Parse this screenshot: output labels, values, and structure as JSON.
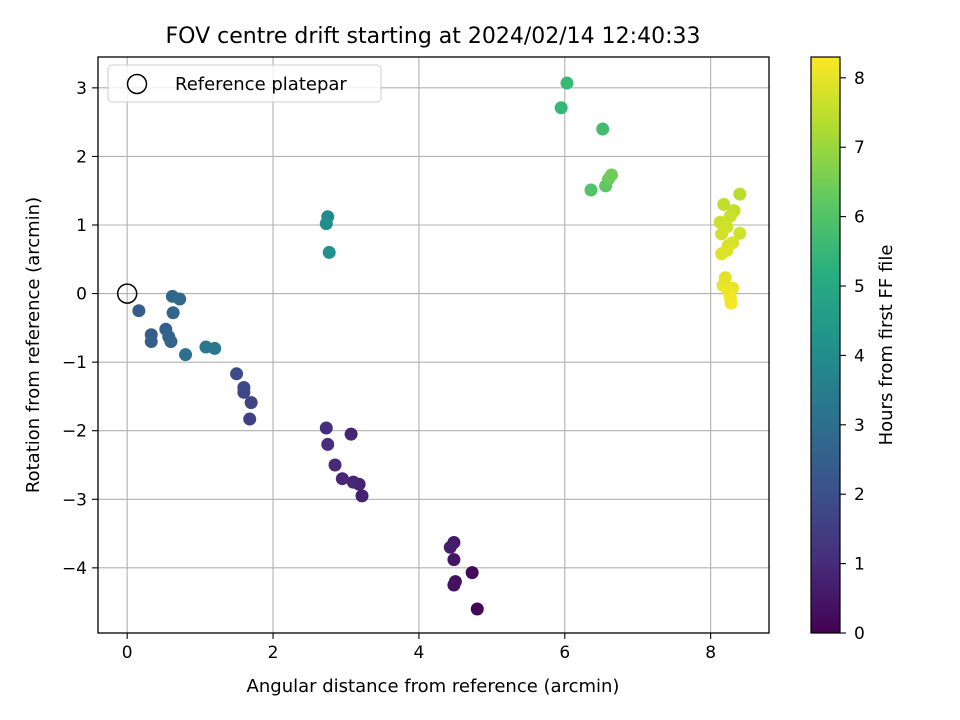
{
  "chart_data": {
    "type": "scatter",
    "title": "FOV centre drift starting at 2024/02/14 12:40:33",
    "xlabel": "Angular distance from reference (arcmin)",
    "ylabel": "Rotation from reference (arcmin)",
    "xlim": [
      -0.4,
      8.8
    ],
    "ylim": [
      -4.95,
      3.45
    ],
    "xticks": [
      0,
      2,
      4,
      6,
      8
    ],
    "yticks": [
      -4,
      -3,
      -2,
      -1,
      0,
      1,
      2,
      3
    ],
    "xtick_labels": [
      "0",
      "2",
      "4",
      "6",
      "8"
    ],
    "ytick_labels": [
      "−4",
      "−3",
      "−2",
      "−1",
      "0",
      "1",
      "2",
      "3"
    ],
    "grid": true,
    "legend": {
      "placement": "top-left",
      "entries": [
        "Reference platepar"
      ]
    },
    "reference_point": {
      "x": 0,
      "y": 0
    },
    "colorbar": {
      "label": "Hours from first FF file",
      "colormap": "viridis",
      "range": [
        0,
        8.3
      ],
      "ticks": [
        0,
        1,
        2,
        3,
        4,
        5,
        6,
        7,
        8
      ],
      "tick_labels": [
        "0",
        "1",
        "2",
        "3",
        "4",
        "5",
        "6",
        "7",
        "8"
      ]
    },
    "points": [
      {
        "x": 4.8,
        "y": -4.6,
        "hours": 0.1
      },
      {
        "x": 4.73,
        "y": -4.07,
        "hours": 0.2
      },
      {
        "x": 4.5,
        "y": -4.2,
        "hours": 0.35
      },
      {
        "x": 4.48,
        "y": -4.25,
        "hours": 0.4
      },
      {
        "x": 4.48,
        "y": -3.88,
        "hours": 0.5
      },
      {
        "x": 4.48,
        "y": -3.63,
        "hours": 0.6
      },
      {
        "x": 4.43,
        "y": -3.7,
        "hours": 0.65
      },
      {
        "x": 3.22,
        "y": -2.95,
        "hours": 0.75
      },
      {
        "x": 3.18,
        "y": -2.78,
        "hours": 0.8
      },
      {
        "x": 3.1,
        "y": -2.75,
        "hours": 0.85
      },
      {
        "x": 2.95,
        "y": -2.7,
        "hours": 0.9
      },
      {
        "x": 3.07,
        "y": -2.05,
        "hours": 0.85
      },
      {
        "x": 2.85,
        "y": -2.5,
        "hours": 1.0
      },
      {
        "x": 2.75,
        "y": -2.2,
        "hours": 1.05
      },
      {
        "x": 2.73,
        "y": -1.96,
        "hours": 1.1
      },
      {
        "x": 1.68,
        "y": -1.83,
        "hours": 1.6
      },
      {
        "x": 1.7,
        "y": -1.59,
        "hours": 1.65
      },
      {
        "x": 1.6,
        "y": -1.44,
        "hours": 1.75
      },
      {
        "x": 1.6,
        "y": -1.37,
        "hours": 1.8
      },
      {
        "x": 1.5,
        "y": -1.17,
        "hours": 1.9
      },
      {
        "x": 0.16,
        "y": -0.25,
        "hours": 2.4
      },
      {
        "x": 0.33,
        "y": -0.6,
        "hours": 2.45
      },
      {
        "x": 0.33,
        "y": -0.7,
        "hours": 2.5
      },
      {
        "x": 0.53,
        "y": -0.52,
        "hours": 2.55
      },
      {
        "x": 0.57,
        "y": -0.63,
        "hours": 2.6
      },
      {
        "x": 0.6,
        "y": -0.7,
        "hours": 2.65
      },
      {
        "x": 0.63,
        "y": -0.28,
        "hours": 2.7
      },
      {
        "x": 0.62,
        "y": -0.04,
        "hours": 2.75
      },
      {
        "x": 0.72,
        "y": -0.08,
        "hours": 2.85
      },
      {
        "x": 0.8,
        "y": -0.89,
        "hours": 3.05
      },
      {
        "x": 1.08,
        "y": -0.78,
        "hours": 3.3
      },
      {
        "x": 1.2,
        "y": -0.8,
        "hours": 3.35
      },
      {
        "x": 2.75,
        "y": 1.12,
        "hours": 3.95
      },
      {
        "x": 2.73,
        "y": 1.02,
        "hours": 4.0
      },
      {
        "x": 2.77,
        "y": 0.6,
        "hours": 4.1
      },
      {
        "x": 5.95,
        "y": 2.71,
        "hours": 5.5
      },
      {
        "x": 6.03,
        "y": 3.07,
        "hours": 5.55
      },
      {
        "x": 6.52,
        "y": 2.4,
        "hours": 5.7
      },
      {
        "x": 6.36,
        "y": 1.51,
        "hours": 6.0
      },
      {
        "x": 6.56,
        "y": 1.57,
        "hours": 6.2
      },
      {
        "x": 6.6,
        "y": 1.67,
        "hours": 6.35
      },
      {
        "x": 6.64,
        "y": 1.73,
        "hours": 6.45
      },
      {
        "x": 8.4,
        "y": 1.45,
        "hours": 7.4
      },
      {
        "x": 8.18,
        "y": 1.3,
        "hours": 7.5
      },
      {
        "x": 8.32,
        "y": 1.21,
        "hours": 7.55
      },
      {
        "x": 8.27,
        "y": 1.13,
        "hours": 7.6
      },
      {
        "x": 8.13,
        "y": 1.04,
        "hours": 7.65
      },
      {
        "x": 8.22,
        "y": 0.97,
        "hours": 7.7
      },
      {
        "x": 8.4,
        "y": 0.88,
        "hours": 7.72
      },
      {
        "x": 8.15,
        "y": 0.87,
        "hours": 7.75
      },
      {
        "x": 8.3,
        "y": 0.74,
        "hours": 7.8
      },
      {
        "x": 8.24,
        "y": 0.7,
        "hours": 7.82
      },
      {
        "x": 8.22,
        "y": 0.63,
        "hours": 7.85
      },
      {
        "x": 8.15,
        "y": 0.58,
        "hours": 7.88
      },
      {
        "x": 8.2,
        "y": 0.23,
        "hours": 7.95
      },
      {
        "x": 8.17,
        "y": 0.12,
        "hours": 8.0
      },
      {
        "x": 8.3,
        "y": 0.08,
        "hours": 8.05
      },
      {
        "x": 8.24,
        "y": 0.04,
        "hours": 8.1
      },
      {
        "x": 8.27,
        "y": -0.06,
        "hours": 8.15
      },
      {
        "x": 8.28,
        "y": -0.14,
        "hours": 8.2
      }
    ]
  }
}
